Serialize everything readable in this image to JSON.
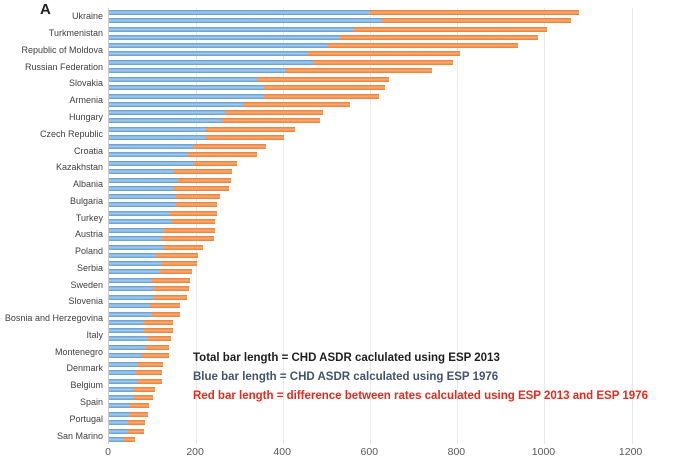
{
  "panel_label": "A",
  "legend": {
    "line1": {
      "text": "Total bar length = CHD ASDR caclulated using ESP 2013",
      "color": "#1f1f1f"
    },
    "line2": {
      "text": "Blue bar length = CHD ASDR calculated using ESP 1976",
      "color": "#44546a"
    },
    "line3": {
      "text": "Red bar length = difference between rates calculated using ESP 2013 and ESP 1976",
      "color": "#e8291d"
    }
  },
  "chart_data": {
    "type": "bar",
    "orientation": "horizontal",
    "title": "",
    "xlabel": "",
    "ylabel": "",
    "xlim": [
      0,
      1240
    ],
    "x_ticks": [
      0,
      200,
      400,
      600,
      800,
      1000,
      1200
    ],
    "grid": "light vertical gridlines at each 200",
    "legend_position": "inside lower-right as text lines",
    "bar_colors": {
      "blue_esp1976": "#5b9bd5",
      "red_difference": "#ed7d31"
    },
    "series_note": "two bars per country; blue segment = CHD ASDR (ESP 1976), full bar = CHD ASDR (ESP 2013)",
    "countries": [
      {
        "name": "Ukraine",
        "bars": [
          {
            "esp1976": 600,
            "esp2013_total": 1080
          },
          {
            "esp1976": 625,
            "esp2013_total": 1060
          }
        ]
      },
      {
        "name": "Turkmenistan",
        "bars": [
          {
            "esp1976": 562,
            "esp2013_total": 1005
          },
          {
            "esp1976": 527,
            "esp2013_total": 985
          }
        ]
      },
      {
        "name": "Republic of Moldova",
        "bars": [
          {
            "esp1976": 501,
            "esp2013_total": 940
          },
          {
            "esp1976": 455,
            "esp2013_total": 806
          }
        ]
      },
      {
        "name": "Russian Federation",
        "bars": [
          {
            "esp1976": 468,
            "esp2013_total": 791
          },
          {
            "esp1976": 405,
            "esp2013_total": 741
          }
        ]
      },
      {
        "name": "Slovakia",
        "bars": [
          {
            "esp1976": 339,
            "esp2013_total": 644
          },
          {
            "esp1976": 357,
            "esp2013_total": 634
          }
        ]
      },
      {
        "name": "Armenia",
        "bars": [
          {
            "esp1976": 357,
            "esp2013_total": 621
          },
          {
            "esp1976": 308,
            "esp2013_total": 553
          }
        ]
      },
      {
        "name": "Hungary",
        "bars": [
          {
            "esp1976": 266,
            "esp2013_total": 491
          },
          {
            "esp1976": 259,
            "esp2013_total": 484
          }
        ]
      },
      {
        "name": "Czech Republic",
        "bars": [
          {
            "esp1976": 222,
            "esp2013_total": 428
          },
          {
            "esp1976": 221,
            "esp2013_total": 401
          }
        ]
      },
      {
        "name": "Croatia",
        "bars": [
          {
            "esp1976": 192,
            "esp2013_total": 360
          },
          {
            "esp1976": 179,
            "esp2013_total": 339
          }
        ]
      },
      {
        "name": "Kazakhstan",
        "bars": [
          {
            "esp1976": 195,
            "esp2013_total": 293
          },
          {
            "esp1976": 148,
            "esp2013_total": 283
          }
        ]
      },
      {
        "name": "Albania",
        "bars": [
          {
            "esp1976": 159,
            "esp2013_total": 281
          },
          {
            "esp1976": 148,
            "esp2013_total": 276
          }
        ]
      },
      {
        "name": "Bulgaria",
        "bars": [
          {
            "esp1976": 153,
            "esp2013_total": 255
          },
          {
            "esp1976": 153,
            "esp2013_total": 249
          }
        ]
      },
      {
        "name": "Turkey",
        "bars": [
          {
            "esp1976": 140,
            "esp2013_total": 247
          },
          {
            "esp1976": 142,
            "esp2013_total": 243
          }
        ]
      },
      {
        "name": "Austria",
        "bars": [
          {
            "esp1976": 125,
            "esp2013_total": 243
          },
          {
            "esp1976": 121,
            "esp2013_total": 241
          }
        ]
      },
      {
        "name": "Poland",
        "bars": [
          {
            "esp1976": 125,
            "esp2013_total": 217
          },
          {
            "esp1976": 108,
            "esp2013_total": 205
          }
        ]
      },
      {
        "name": "Serbia",
        "bars": [
          {
            "esp1976": 121,
            "esp2013_total": 202
          },
          {
            "esp1976": 117,
            "esp2013_total": 190
          }
        ]
      },
      {
        "name": "Sweden",
        "bars": [
          {
            "esp1976": 98,
            "esp2013_total": 186
          },
          {
            "esp1976": 100,
            "esp2013_total": 184
          }
        ]
      },
      {
        "name": "Slovenia",
        "bars": [
          {
            "esp1976": 100,
            "esp2013_total": 178
          },
          {
            "esp1976": 95,
            "esp2013_total": 163
          }
        ]
      },
      {
        "name": "Bosnia and Herzegovina",
        "bars": [
          {
            "esp1976": 96,
            "esp2013_total": 163
          },
          {
            "esp1976": 77,
            "esp2013_total": 148
          }
        ]
      },
      {
        "name": "Italy",
        "bars": [
          {
            "esp1976": 81,
            "esp2013_total": 148
          },
          {
            "esp1976": 89,
            "esp2013_total": 142
          }
        ]
      },
      {
        "name": "Montenegro",
        "bars": [
          {
            "esp1976": 86,
            "esp2013_total": 138
          },
          {
            "esp1976": 73,
            "esp2013_total": 138
          }
        ]
      },
      {
        "name": "Denmark",
        "bars": [
          {
            "esp1976": 66,
            "esp2013_total": 123
          },
          {
            "esp1976": 62,
            "esp2013_total": 121
          }
        ]
      },
      {
        "name": "Belgium",
        "bars": [
          {
            "esp1976": 64,
            "esp2013_total": 121
          },
          {
            "esp1976": 56,
            "esp2013_total": 106
          }
        ]
      },
      {
        "name": "Spain",
        "bars": [
          {
            "esp1976": 54,
            "esp2013_total": 100
          },
          {
            "esp1976": 49,
            "esp2013_total": 91
          }
        ]
      },
      {
        "name": "Portugal",
        "bars": [
          {
            "esp1976": 47,
            "esp2013_total": 89
          },
          {
            "esp1976": 43,
            "esp2013_total": 82
          }
        ]
      },
      {
        "name": "San Marino",
        "bars": [
          {
            "esp1976": 42,
            "esp2013_total": 80
          },
          {
            "esp1976": 32,
            "esp2013_total": 60
          }
        ]
      }
    ]
  }
}
